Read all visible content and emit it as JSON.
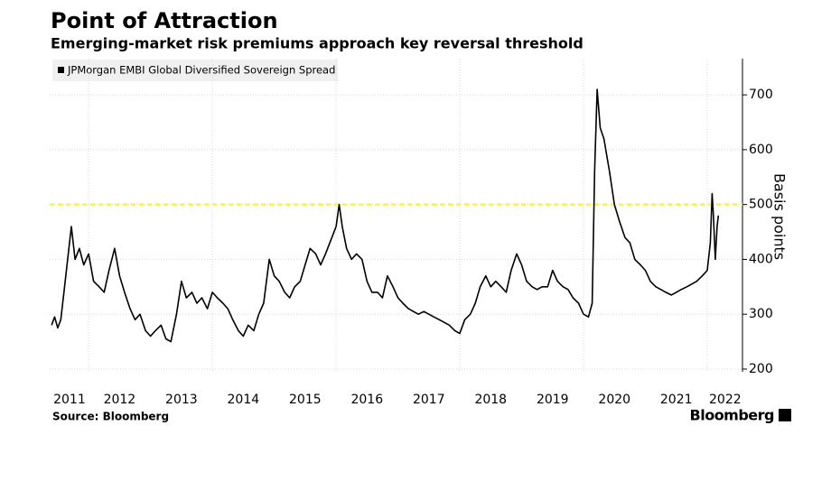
{
  "chart_data": {
    "type": "line",
    "title": "Point of Attraction",
    "subtitle": "Emerging-market risk premiums approach key reversal threshold",
    "y_axis_label": "Basis points",
    "source": "Source: Bloomberg",
    "brand": "Bloomberg",
    "x": [
      2011.4,
      2011.45,
      2011.5,
      2011.55,
      2011.6,
      2011.65,
      2011.72,
      2011.78,
      2011.85,
      2011.92,
      2012.0,
      2012.08,
      2012.17,
      2012.25,
      2012.33,
      2012.42,
      2012.5,
      2012.58,
      2012.67,
      2012.75,
      2012.83,
      2012.92,
      2013.0,
      2013.08,
      2013.17,
      2013.25,
      2013.33,
      2013.42,
      2013.5,
      2013.58,
      2013.67,
      2013.75,
      2013.83,
      2013.92,
      2014.0,
      2014.08,
      2014.17,
      2014.25,
      2014.33,
      2014.42,
      2014.5,
      2014.58,
      2014.67,
      2014.75,
      2014.83,
      2014.92,
      2015.0,
      2015.08,
      2015.17,
      2015.25,
      2015.33,
      2015.42,
      2015.5,
      2015.58,
      2015.67,
      2015.75,
      2015.83,
      2016.0,
      2016.05,
      2016.1,
      2016.17,
      2016.25,
      2016.33,
      2016.42,
      2016.5,
      2016.58,
      2016.67,
      2016.75,
      2016.83,
      2016.92,
      2017.0,
      2017.08,
      2017.17,
      2017.25,
      2017.33,
      2017.42,
      2017.5,
      2017.58,
      2017.67,
      2017.75,
      2017.83,
      2017.92,
      2018.0,
      2018.08,
      2018.17,
      2018.25,
      2018.33,
      2018.42,
      2018.5,
      2018.58,
      2018.67,
      2018.75,
      2018.83,
      2018.92,
      2019.0,
      2019.08,
      2019.17,
      2019.25,
      2019.33,
      2019.42,
      2019.5,
      2019.58,
      2019.67,
      2019.75,
      2019.83,
      2019.92,
      2020.0,
      2020.08,
      2020.14,
      2020.18,
      2020.22,
      2020.27,
      2020.33,
      2020.42,
      2020.5,
      2020.58,
      2020.67,
      2020.75,
      2020.83,
      2020.92,
      2021.0,
      2021.08,
      2021.17,
      2021.25,
      2021.33,
      2021.42,
      2021.5,
      2021.58,
      2021.67,
      2021.75,
      2021.83,
      2021.92,
      2022.0,
      2022.05,
      2022.08,
      2022.1,
      2022.13,
      2022.16,
      2022.18
    ],
    "series": [
      {
        "name": "JPMorgan EMBI Global Diversified Sovereign Spread",
        "color": "#000000",
        "values": [
          280,
          295,
          275,
          290,
          340,
          390,
          460,
          400,
          420,
          390,
          410,
          360,
          350,
          340,
          380,
          420,
          370,
          340,
          310,
          290,
          300,
          270,
          260,
          270,
          280,
          255,
          250,
          300,
          360,
          330,
          340,
          320,
          330,
          310,
          340,
          330,
          320,
          310,
          290,
          270,
          260,
          280,
          270,
          300,
          320,
          400,
          370,
          360,
          340,
          330,
          350,
          360,
          390,
          420,
          410,
          390,
          410,
          460,
          500,
          460,
          420,
          400,
          410,
          400,
          360,
          340,
          340,
          330,
          370,
          350,
          330,
          320,
          310,
          305,
          300,
          305,
          300,
          295,
          290,
          285,
          280,
          270,
          265,
          290,
          300,
          320,
          350,
          370,
          350,
          360,
          350,
          340,
          380,
          410,
          390,
          360,
          350,
          345,
          350,
          350,
          380,
          360,
          350,
          345,
          330,
          320,
          300,
          295,
          320,
          560,
          710,
          640,
          620,
          560,
          500,
          470,
          440,
          430,
          400,
          390,
          380,
          360,
          350,
          345,
          340,
          335,
          340,
          345,
          350,
          355,
          360,
          370,
          380,
          430,
          520,
          480,
          400,
          460,
          480
        ]
      }
    ],
    "threshold": 500,
    "threshold_color": "#ffff00",
    "xlim": [
      2011.37,
      2022.57
    ],
    "xticks": [
      {
        "value": 2011.69,
        "label": "2011"
      },
      {
        "value": 2012.5,
        "label": "2012"
      },
      {
        "value": 2013.5,
        "label": "2013"
      },
      {
        "value": 2014.5,
        "label": "2014"
      },
      {
        "value": 2015.5,
        "label": "2015"
      },
      {
        "value": 2016.5,
        "label": "2016"
      },
      {
        "value": 2017.5,
        "label": "2017"
      },
      {
        "value": 2018.5,
        "label": "2018"
      },
      {
        "value": 2019.5,
        "label": "2019"
      },
      {
        "value": 2020.5,
        "label": "2020"
      },
      {
        "value": 2021.5,
        "label": "2021"
      },
      {
        "value": 2022.29,
        "label": "2022"
      }
    ],
    "xgrid": [
      2012,
      2014,
      2016,
      2018,
      2020,
      2022
    ],
    "ylim": [
      195,
      766
    ],
    "yticks": [
      200,
      300,
      400,
      500,
      600,
      700
    ],
    "grid": true
  }
}
